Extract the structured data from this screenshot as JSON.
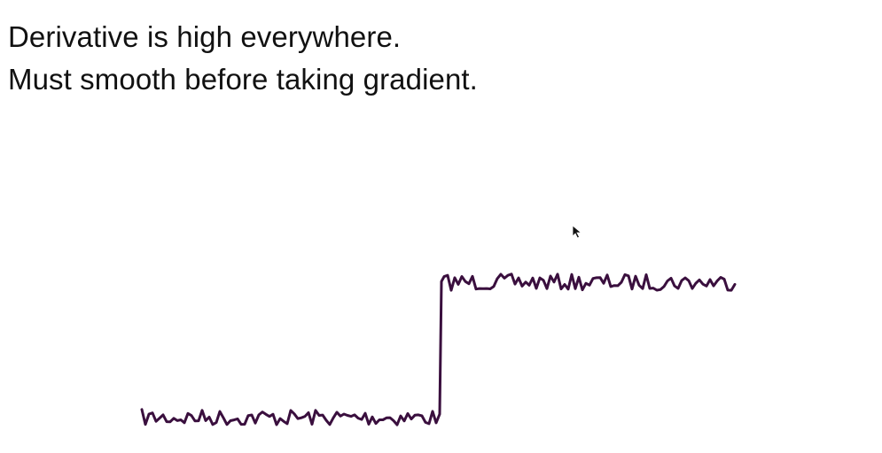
{
  "slide": {
    "lines": [
      "Derivative is high everywhere.",
      "Must smooth before taking gradient."
    ]
  },
  "diagram": {
    "type": "noisy-step-signal",
    "stroke_color": "#3a0f3e",
    "low_level": 0,
    "high_level": 1,
    "noise_amplitude": 0.06,
    "step_at": 0.5
  },
  "cursor": {
    "icon": "mouse-pointer-icon",
    "color": "#111111"
  }
}
